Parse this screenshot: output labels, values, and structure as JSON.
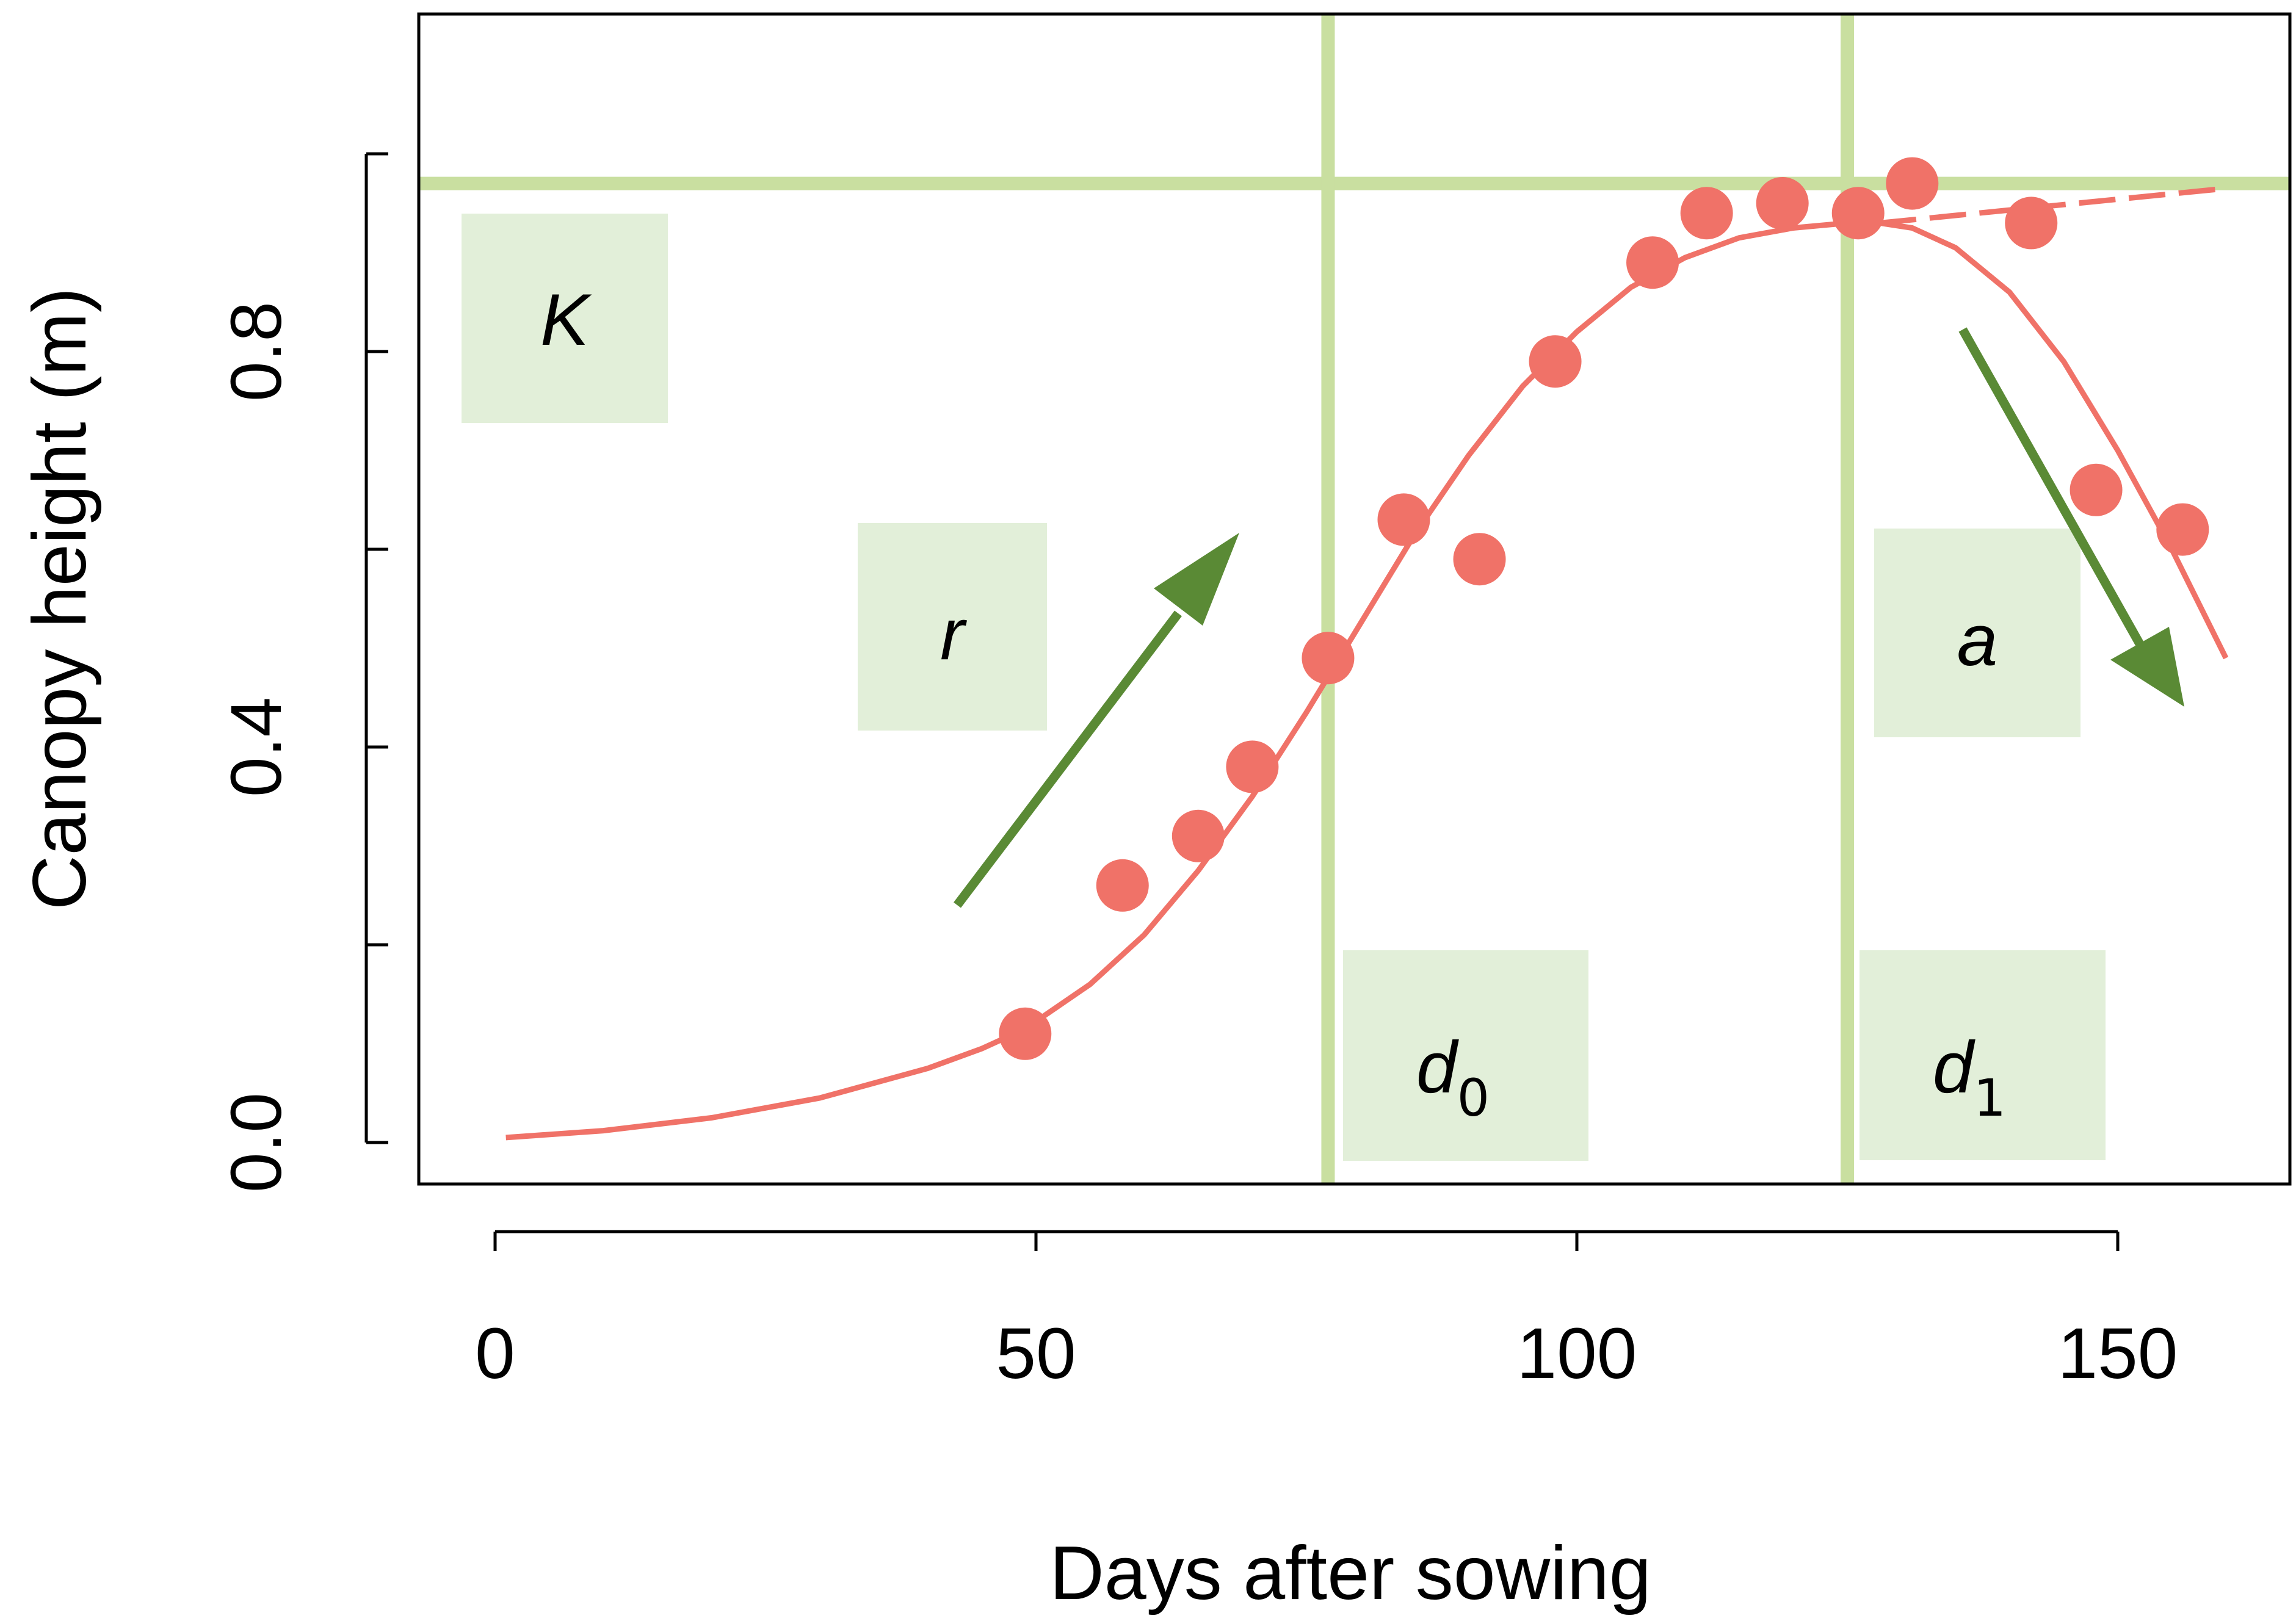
{
  "chart_data": {
    "type": "scatter",
    "title": "",
    "xlabel": "Days after sowing",
    "ylabel": "Canopy height (m)",
    "xlim": [
      -13,
      165
    ],
    "ylim": [
      -0.08,
      1.14
    ],
    "x_ticks": [
      0,
      50,
      100,
      150
    ],
    "x_tick_labels": [
      "0",
      "50",
      "100",
      "150"
    ],
    "y_ticks": [
      0.0,
      0.2,
      0.4,
      0.6,
      0.8,
      1.0
    ],
    "y_tick_labels": [
      "0.0",
      "",
      "0.4",
      "",
      "0.8",
      ""
    ],
    "grid": false,
    "colors": {
      "points": "#f07268",
      "curve": "#f07268",
      "param_lines": "#c9dfa0",
      "arrows": "#5a8a35",
      "label_boxes": "#e2efd9"
    },
    "series": [
      {
        "kind": "points",
        "x": [
          49,
          58,
          65,
          70,
          77,
          84,
          91,
          98,
          107,
          112,
          119,
          126,
          131,
          142,
          148,
          156
        ],
        "y": [
          0.11,
          0.26,
          0.31,
          0.38,
          0.49,
          0.63,
          0.59,
          0.79,
          0.89,
          0.94,
          0.95,
          0.94,
          0.97,
          0.93,
          0.66,
          0.62
        ]
      },
      {
        "kind": "fitted-curve",
        "x": [
          1,
          10,
          20,
          30,
          40,
          45,
          49,
          55,
          60,
          65,
          70,
          75,
          80,
          85,
          90,
          95,
          100,
          105,
          110,
          115,
          120,
          125,
          128,
          131,
          135,
          140,
          145,
          150,
          155,
          160
        ],
        "y": [
          0.005,
          0.012,
          0.025,
          0.045,
          0.075,
          0.095,
          0.115,
          0.16,
          0.21,
          0.275,
          0.35,
          0.435,
          0.525,
          0.615,
          0.695,
          0.765,
          0.82,
          0.865,
          0.895,
          0.915,
          0.925,
          0.93,
          0.93,
          0.925,
          0.905,
          0.86,
          0.79,
          0.7,
          0.6,
          0.49
        ]
      },
      {
        "kind": "plateau-extension",
        "x": [
          128,
          160
        ],
        "y": [
          0.93,
          0.965
        ]
      }
    ],
    "parameters": {
      "K": {
        "label": "K",
        "value_y": 0.97
      },
      "r": {
        "label": "r"
      },
      "a": {
        "label": "a"
      },
      "d0": {
        "label": "d",
        "sub": "0",
        "value_x": 77
      },
      "d1": {
        "label": "d",
        "sub": "1",
        "value_x": 125
      }
    }
  }
}
